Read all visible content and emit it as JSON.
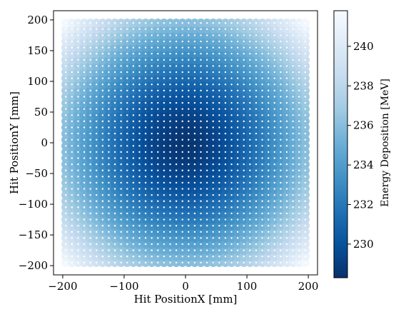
{
  "chart_data": {
    "type": "scatter",
    "subtype": "hexbin-energy-map",
    "xlabel": "Hit PositionX [mm]",
    "ylabel": "Hit PositionY [mm]",
    "colorbar_label": "Energy Deposition [MeV]",
    "xlim": [
      -215,
      215
    ],
    "ylim": [
      -215,
      215
    ],
    "x_ticks": [
      -200,
      -100,
      0,
      100,
      200
    ],
    "y_ticks": [
      -200,
      -150,
      -100,
      -50,
      0,
      50,
      100,
      150,
      200
    ],
    "colorbar_range": [
      228.3,
      241.8
    ],
    "colorbar_ticks": [
      230,
      232,
      234,
      236,
      238,
      240
    ],
    "colormap": "Blues_r",
    "grid": false,
    "hit_markers": "white",
    "grid_extent": [
      -195,
      195
    ],
    "grid_step": 10,
    "energy_model": {
      "center_value": 228.5,
      "corner_value": 241.5
    }
  }
}
